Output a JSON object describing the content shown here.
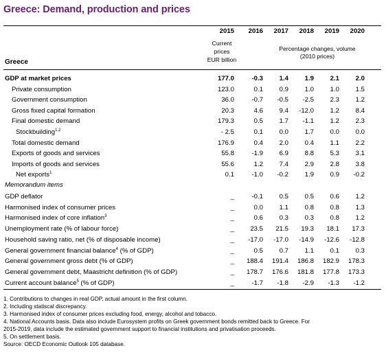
{
  "title": "Greece: Demand, production and prices",
  "header": {
    "years": [
      "2015",
      "2016",
      "2017",
      "2018",
      "2019",
      "2020"
    ],
    "sub_2015": [
      "Current",
      "prices",
      "EUR billion"
    ],
    "sub_pct": [
      "Percentage changes, volume",
      "(2010 prices)"
    ],
    "country": "Greece"
  },
  "rows": [
    {
      "label": "GDP at market prices",
      "sup": "",
      "indent": 0,
      "bold": true,
      "values": [
        "177.0",
        "-0.3",
        "1.4",
        "1.9",
        "2.1",
        "2.0"
      ]
    },
    {
      "label": "Private consumption",
      "sup": "",
      "indent": 1,
      "bold": false,
      "values": [
        "123.0",
        "0.1",
        "0.9",
        "1.0",
        "1.0",
        "1.5"
      ]
    },
    {
      "label": "Government consumption",
      "sup": "",
      "indent": 1,
      "bold": false,
      "values": [
        "36.0",
        "-0.7",
        "-0.5",
        "-2.5",
        "2.3",
        "1.2"
      ]
    },
    {
      "label": "Gross fixed capital formation",
      "sup": "",
      "indent": 1,
      "bold": false,
      "values": [
        "20.3",
        "4.6",
        "9.4",
        "-12.0",
        "1.2",
        "8.4"
      ]
    },
    {
      "label": "Final domestic demand",
      "sup": "",
      "indent": 1,
      "bold": false,
      "values": [
        "179.3",
        "0.5",
        "1.7",
        "-1.1",
        "1.2",
        "2.3"
      ]
    },
    {
      "label": "Stockbuilding",
      "sup": "1,2",
      "indent": 2,
      "bold": false,
      "values": [
        "- 2.5",
        "0.1",
        "0.0",
        "1.7",
        "0.0",
        "0.0"
      ]
    },
    {
      "label": "Total domestic demand",
      "sup": "",
      "indent": 1,
      "bold": false,
      "values": [
        "176.9",
        "0.4",
        "2.0",
        "0.4",
        "1.1",
        "2.2"
      ]
    },
    {
      "label": "Exports of goods and services",
      "sup": "",
      "indent": 1,
      "bold": false,
      "values": [
        "55.8",
        "-1.9",
        "6.9",
        "8.8",
        "5.3",
        "3.1"
      ]
    },
    {
      "label": "Imports of goods and services",
      "sup": "",
      "indent": 1,
      "bold": false,
      "values": [
        "55.6",
        "1.2",
        "7.4",
        "2.9",
        "2.8",
        "3.8"
      ]
    },
    {
      "label": "Net exports",
      "sup": "1",
      "indent": 2,
      "bold": false,
      "values": [
        "0.1",
        "-1.0",
        "-0.2",
        "1.9",
        "0.9",
        "-0.2"
      ]
    }
  ],
  "memo_title": "Memorandum items",
  "memo_rows": [
    {
      "label": "GDP deflator",
      "sup": "",
      "suffix": "",
      "values": [
        "_",
        "-0.1",
        "0.5",
        "0.5",
        "0.6",
        "1.2"
      ]
    },
    {
      "label": "Harmonised index of consumer prices",
      "sup": "",
      "suffix": "",
      "values": [
        "_",
        "0.0",
        "1.1",
        "0.8",
        "0.8",
        "1.3"
      ]
    },
    {
      "label": "Harmonised index of core inflation",
      "sup": "3",
      "suffix": "",
      "values": [
        "_",
        "0.6",
        "0.3",
        "0.3",
        "0.8",
        "1.2"
      ]
    },
    {
      "label": "Unemployment rate (% of labour force)",
      "sup": "",
      "suffix": "",
      "values": [
        "_",
        "23.5",
        "21.5",
        "19.3",
        "18.1",
        "17.3"
      ]
    },
    {
      "label": "Household saving ratio, net (% of disposable income)",
      "sup": "",
      "suffix": "",
      "values": [
        "_",
        "-17.0",
        "-17.0",
        "-14.9",
        "-12.6",
        "-12.8"
      ]
    },
    {
      "label": "General government financial balance",
      "sup": "4",
      "suffix": " (% of GDP)",
      "values": [
        "_",
        "0.5",
        "0.7",
        "1.1",
        "0.1",
        "0.3"
      ]
    },
    {
      "label": "General government gross debt (% of GDP)",
      "sup": "",
      "suffix": "",
      "values": [
        "_",
        "188.4",
        "191.4",
        "186.8",
        "182.9",
        "178.3"
      ]
    },
    {
      "label": "General government debt, Maastricht definition (% of GDP)",
      "sup": "",
      "suffix": "",
      "values": [
        "_",
        "178.7",
        "176.6",
        "181.8",
        "177.8",
        "173.3"
      ]
    },
    {
      "label": "Current account balance",
      "sup": "5",
      "suffix": " (% of GDP)",
      "values": [
        "_",
        "-1.7",
        "-1.8",
        "-2.9",
        "-1.3",
        "-1.2"
      ]
    }
  ],
  "notes": [
    "1. Contributions to changes in real GDP, actual amount in the first column.",
    "2. Including statiscal discrepancy.",
    "3. Harmonised index of consumer prices excluding food, energy, alcohol and tobacco.",
    "4. National Accounts basis. Data also include Eurosystem profits on Greek government bonds remitted back to Greece. For",
    "2015-2019, data include the estimated government support to financial institutions and privatisation proceeds.",
    "5. On settlement basis.",
    "Source: OECD Economic Outlook 105 database."
  ]
}
